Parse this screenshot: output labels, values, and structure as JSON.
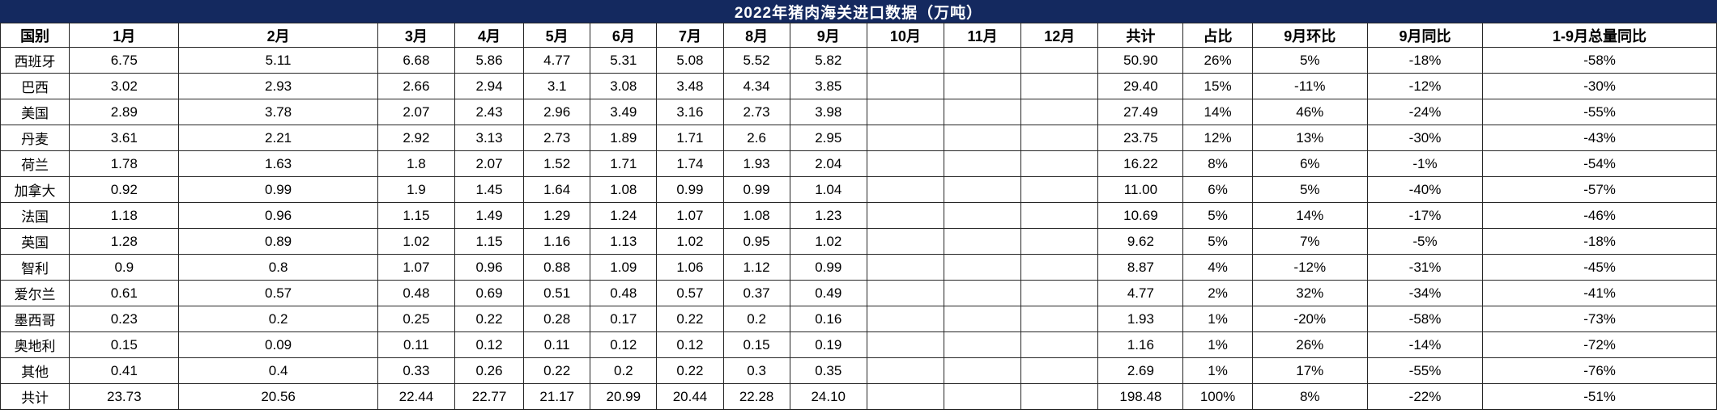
{
  "title": "2022年猪肉海关进口数据（万吨）",
  "colors": {
    "title_background": "#14295f",
    "title_text": "#ffffff",
    "grid_line": "#262626",
    "cell_background": "#ffffff",
    "cell_text": "#000000"
  },
  "columns": [
    "国别",
    "1月",
    "2月",
    "3月",
    "4月",
    "5月",
    "6月",
    "7月",
    "8月",
    "9月",
    "10月",
    "11月",
    "12月",
    "共计",
    "占比",
    "9月环比",
    "9月同比",
    "1-9月总量同比"
  ],
  "rows": [
    {
      "country": "西班牙",
      "cells": [
        "6.75",
        "5.11",
        "6.68",
        "5.86",
        "4.77",
        "5.31",
        "5.08",
        "5.52",
        "5.82",
        "",
        "",
        "",
        "50.90",
        "26%",
        "5%",
        "-18%",
        "-58%"
      ]
    },
    {
      "country": "巴西",
      "cells": [
        "3.02",
        "2.93",
        "2.66",
        "2.94",
        "3.1",
        "3.08",
        "3.48",
        "4.34",
        "3.85",
        "",
        "",
        "",
        "29.40",
        "15%",
        "-11%",
        "-12%",
        "-30%"
      ]
    },
    {
      "country": "美国",
      "cells": [
        "2.89",
        "3.78",
        "2.07",
        "2.43",
        "2.96",
        "3.49",
        "3.16",
        "2.73",
        "3.98",
        "",
        "",
        "",
        "27.49",
        "14%",
        "46%",
        "-24%",
        "-55%"
      ]
    },
    {
      "country": "丹麦",
      "cells": [
        "3.61",
        "2.21",
        "2.92",
        "3.13",
        "2.73",
        "1.89",
        "1.71",
        "2.6",
        "2.95",
        "",
        "",
        "",
        "23.75",
        "12%",
        "13%",
        "-30%",
        "-43%"
      ]
    },
    {
      "country": "荷兰",
      "cells": [
        "1.78",
        "1.63",
        "1.8",
        "2.07",
        "1.52",
        "1.71",
        "1.74",
        "1.93",
        "2.04",
        "",
        "",
        "",
        "16.22",
        "8%",
        "6%",
        "-1%",
        "-54%"
      ]
    },
    {
      "country": "加拿大",
      "cells": [
        "0.92",
        "0.99",
        "1.9",
        "1.45",
        "1.64",
        "1.08",
        "0.99",
        "0.99",
        "1.04",
        "",
        "",
        "",
        "11.00",
        "6%",
        "5%",
        "-40%",
        "-57%"
      ]
    },
    {
      "country": "法国",
      "cells": [
        "1.18",
        "0.96",
        "1.15",
        "1.49",
        "1.29",
        "1.24",
        "1.07",
        "1.08",
        "1.23",
        "",
        "",
        "",
        "10.69",
        "5%",
        "14%",
        "-17%",
        "-46%"
      ]
    },
    {
      "country": "英国",
      "cells": [
        "1.28",
        "0.89",
        "1.02",
        "1.15",
        "1.16",
        "1.13",
        "1.02",
        "0.95",
        "1.02",
        "",
        "",
        "",
        "9.62",
        "5%",
        "7%",
        "-5%",
        "-18%"
      ]
    },
    {
      "country": "智利",
      "cells": [
        "0.9",
        "0.8",
        "1.07",
        "0.96",
        "0.88",
        "1.09",
        "1.06",
        "1.12",
        "0.99",
        "",
        "",
        "",
        "8.87",
        "4%",
        "-12%",
        "-31%",
        "-45%"
      ]
    },
    {
      "country": "爱尔兰",
      "cells": [
        "0.61",
        "0.57",
        "0.48",
        "0.69",
        "0.51",
        "0.48",
        "0.57",
        "0.37",
        "0.49",
        "",
        "",
        "",
        "4.77",
        "2%",
        "32%",
        "-34%",
        "-41%"
      ]
    },
    {
      "country": "墨西哥",
      "cells": [
        "0.23",
        "0.2",
        "0.25",
        "0.22",
        "0.28",
        "0.17",
        "0.22",
        "0.2",
        "0.16",
        "",
        "",
        "",
        "1.93",
        "1%",
        "-20%",
        "-58%",
        "-73%"
      ]
    },
    {
      "country": "奥地利",
      "cells": [
        "0.15",
        "0.09",
        "0.11",
        "0.12",
        "0.11",
        "0.12",
        "0.12",
        "0.15",
        "0.19",
        "",
        "",
        "",
        "1.16",
        "1%",
        "26%",
        "-14%",
        "-72%"
      ]
    },
    {
      "country": "其他",
      "cells": [
        "0.41",
        "0.4",
        "0.33",
        "0.26",
        "0.22",
        "0.2",
        "0.22",
        "0.3",
        "0.35",
        "",
        "",
        "",
        "2.69",
        "1%",
        "17%",
        "-55%",
        "-76%"
      ]
    },
    {
      "country": "共计",
      "cells": [
        "23.73",
        "20.56",
        "22.44",
        "22.77",
        "21.17",
        "20.99",
        "20.44",
        "22.28",
        "24.10",
        "",
        "",
        "",
        "198.48",
        "100%",
        "8%",
        "-22%",
        "-51%"
      ]
    }
  ]
}
